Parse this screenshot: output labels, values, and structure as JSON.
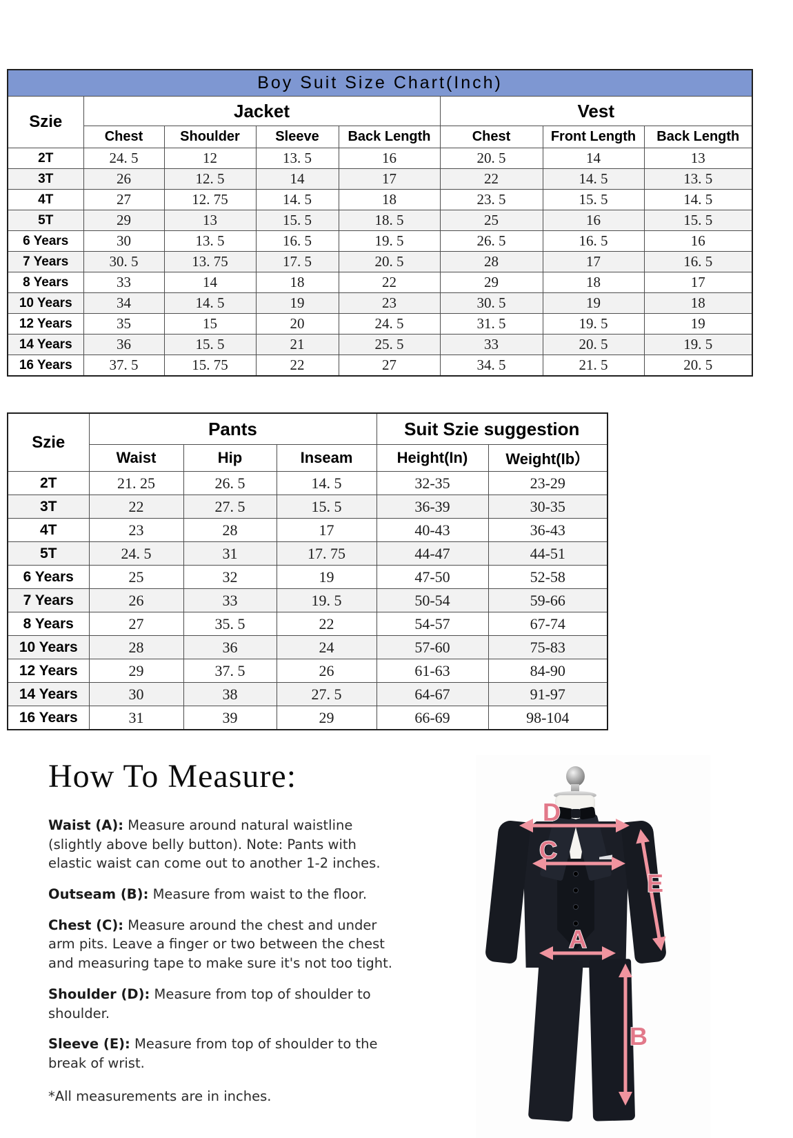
{
  "theme": {
    "title_bar_bg": "#7e97d2",
    "title_bar_text": "#ffffff",
    "row_alt_bg": "#f2f2f2",
    "border_dark": "#1f1f1f",
    "border_inner": "#4d4d4d",
    "arrow_pink": "#f0949f",
    "label_pink": "#e2798a",
    "suit_dark": "#1b1e26",
    "text_color": "#2b2b2b"
  },
  "table1": {
    "title": "Boy Suit Size Chart(Inch)",
    "size_header": "Szie",
    "groups": [
      {
        "label": "Jacket",
        "cols": [
          "Chest",
          "Shoulder",
          "Sleeve",
          "Back Length"
        ]
      },
      {
        "label": "Vest",
        "cols": [
          "Chest",
          "Front Length",
          "Back Length"
        ]
      }
    ],
    "rows": [
      {
        "size": "2T",
        "values": [
          "24. 5",
          "12",
          "13. 5",
          "16",
          "20. 5",
          "14",
          "13"
        ]
      },
      {
        "size": "3T",
        "values": [
          "26",
          "12. 5",
          "14",
          "17",
          "22",
          "14. 5",
          "13. 5"
        ]
      },
      {
        "size": "4T",
        "values": [
          "27",
          "12. 75",
          "14. 5",
          "18",
          "23. 5",
          "15. 5",
          "14. 5"
        ]
      },
      {
        "size": "5T",
        "values": [
          "29",
          "13",
          "15. 5",
          "18. 5",
          "25",
          "16",
          "15. 5"
        ]
      },
      {
        "size": "6 Years",
        "values": [
          "30",
          "13. 5",
          "16. 5",
          "19. 5",
          "26. 5",
          "16. 5",
          "16"
        ]
      },
      {
        "size": "7 Years",
        "values": [
          "30. 5",
          "13. 75",
          "17. 5",
          "20. 5",
          "28",
          "17",
          "16. 5"
        ]
      },
      {
        "size": "8 Years",
        "values": [
          "33",
          "14",
          "18",
          "22",
          "29",
          "18",
          "17"
        ]
      },
      {
        "size": "10 Years",
        "values": [
          "34",
          "14. 5",
          "19",
          "23",
          "30. 5",
          "19",
          "18"
        ]
      },
      {
        "size": "12 Years",
        "values": [
          "35",
          "15",
          "20",
          "24. 5",
          "31. 5",
          "19. 5",
          "19"
        ]
      },
      {
        "size": "14 Years",
        "values": [
          "36",
          "15. 5",
          "21",
          "25. 5",
          "33",
          "20. 5",
          "19. 5"
        ]
      },
      {
        "size": "16 Years",
        "values": [
          "37. 5",
          "15. 75",
          "22",
          "27",
          "34. 5",
          "21. 5",
          "20. 5"
        ]
      }
    ]
  },
  "table2": {
    "size_header": "Szie",
    "groups": [
      {
        "label": "Pants",
        "cols": [
          "Waist",
          "Hip",
          "Inseam"
        ]
      },
      {
        "label": "Suit Szie suggestion",
        "cols": [
          "Height(In)",
          "Weight(Ib）"
        ]
      }
    ],
    "rows": [
      {
        "size": "2T",
        "values": [
          "21. 25",
          "26. 5",
          "14. 5",
          "32-35",
          "23-29"
        ]
      },
      {
        "size": "3T",
        "values": [
          "22",
          "27. 5",
          "15. 5",
          "36-39",
          "30-35"
        ]
      },
      {
        "size": "4T",
        "values": [
          "23",
          "28",
          "17",
          "40-43",
          "36-43"
        ]
      },
      {
        "size": "5T",
        "values": [
          "24. 5",
          "31",
          "17. 75",
          "44-47",
          "44-51"
        ]
      },
      {
        "size": "6 Years",
        "values": [
          "25",
          "32",
          "19",
          "47-50",
          "52-58"
        ]
      },
      {
        "size": "7 Years",
        "values": [
          "26",
          "33",
          "19. 5",
          "50-54",
          "59-66"
        ]
      },
      {
        "size": "8 Years",
        "values": [
          "27",
          "35. 5",
          "22",
          "54-57",
          "67-74"
        ]
      },
      {
        "size": "10 Years",
        "values": [
          "28",
          "36",
          "24",
          "57-60",
          "75-83"
        ]
      },
      {
        "size": "12 Years",
        "values": [
          "29",
          "37. 5",
          "26",
          "61-63",
          "84-90"
        ]
      },
      {
        "size": "14 Years",
        "values": [
          "30",
          "38",
          "27. 5",
          "64-67",
          "91-97"
        ]
      },
      {
        "size": "16 Years",
        "values": [
          "31",
          "39",
          "29",
          "66-69",
          "98-104"
        ]
      }
    ]
  },
  "measure": {
    "heading": "How To Measure:",
    "items": [
      {
        "label": "Waist (A):",
        "text": " Measure around natural waistline (slightly above belly button). Note: Pants with elastic waist can come out to another 1-2 inches."
      },
      {
        "label": "Outseam (B):",
        "text": " Measure from waist to the floor."
      },
      {
        "label": "Chest (C):",
        "text": " Measure around the chest and under arm pits. Leave a finger or two between the chest and measuring tape to make sure it's not too tight."
      },
      {
        "label": "Shoulder (D):",
        "text": " Measure from top of shoulder to shoulder."
      },
      {
        "label": "Sleeve (E):",
        "text": " Measure from top of shoulder to the break of wrist."
      }
    ],
    "footnote": "*All measurements are in inches."
  },
  "figure": {
    "labels": {
      "a": "A",
      "b": "B",
      "c": "C",
      "d": "D",
      "e": "E"
    }
  }
}
